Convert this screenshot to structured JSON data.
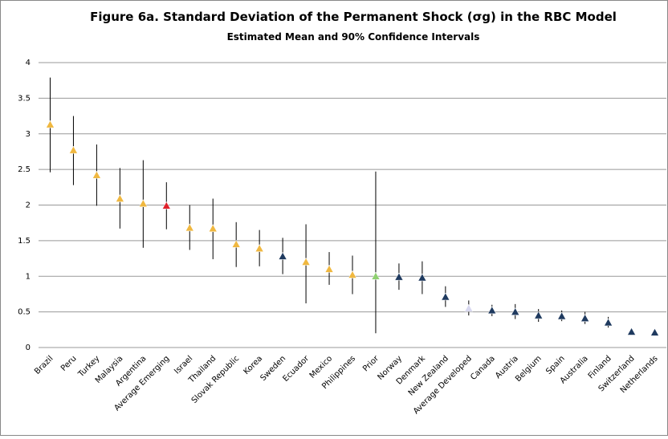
{
  "chart_data": {
    "type": "errorbar",
    "title": "Figure 6a. Standard Deviation of the Permanent Shock (σg) in the RBC Model",
    "subtitle": "Estimated Mean and 90% Confidence Intervals",
    "categories": [
      "Brazil",
      "Peru",
      "Turkey",
      "Malaysia",
      "Argentina",
      "Average Emerging",
      "Israel",
      "Thailand",
      "Slovak Republic",
      "Korea",
      "Sweden",
      "Ecuador",
      "Mexico",
      "Philippines",
      "Prior",
      "Norway",
      "Denmark",
      "New Zealand",
      "Average Developed",
      "Canada",
      "Austria",
      "Belgium",
      "Spain",
      "Australia",
      "Finland",
      "Switzerland",
      "Netherlands"
    ],
    "values": [
      3.13,
      2.77,
      2.42,
      2.09,
      2.02,
      1.99,
      1.68,
      1.67,
      1.45,
      1.39,
      1.28,
      1.2,
      1.1,
      1.02,
      1.0,
      0.99,
      0.98,
      0.71,
      0.55,
      0.52,
      0.5,
      0.45,
      0.44,
      0.41,
      0.35,
      0.22,
      0.21
    ],
    "lower": [
      2.46,
      2.28,
      1.99,
      1.67,
      1.4,
      1.66,
      1.37,
      1.24,
      1.13,
      1.14,
      1.03,
      0.62,
      0.88,
      0.75,
      0.2,
      0.81,
      0.75,
      0.57,
      0.45,
      0.44,
      0.4,
      0.36,
      0.37,
      0.33,
      0.28,
      0.2,
      0.19
    ],
    "upper": [
      3.79,
      3.25,
      2.85,
      2.52,
      2.63,
      2.32,
      2.0,
      2.09,
      1.76,
      1.65,
      1.54,
      1.73,
      1.34,
      1.29,
      2.47,
      1.18,
      1.21,
      0.86,
      0.66,
      0.6,
      0.61,
      0.54,
      0.52,
      0.5,
      0.43,
      0.24,
      0.23
    ],
    "colors": [
      "#f0b840",
      "#f0b840",
      "#f0b840",
      "#f0b840",
      "#f0b840",
      "#e0202a",
      "#f0b840",
      "#f0b840",
      "#f0b840",
      "#f0b840",
      "#1f3a5f",
      "#f0b840",
      "#f0b840",
      "#f0b840",
      "#8fd070",
      "#1f3a5f",
      "#1f3a5f",
      "#1f3a5f",
      "#d8d8f0",
      "#1f3a5f",
      "#1f3a5f",
      "#1f3a5f",
      "#1f3a5f",
      "#1f3a5f",
      "#1f3a5f",
      "#1f3a5f",
      "#1f3a5f"
    ],
    "ylim": [
      0,
      4
    ],
    "yticks": [
      0,
      0.5,
      1,
      1.5,
      2,
      2.5,
      3,
      3.5,
      4
    ],
    "grid": true
  }
}
